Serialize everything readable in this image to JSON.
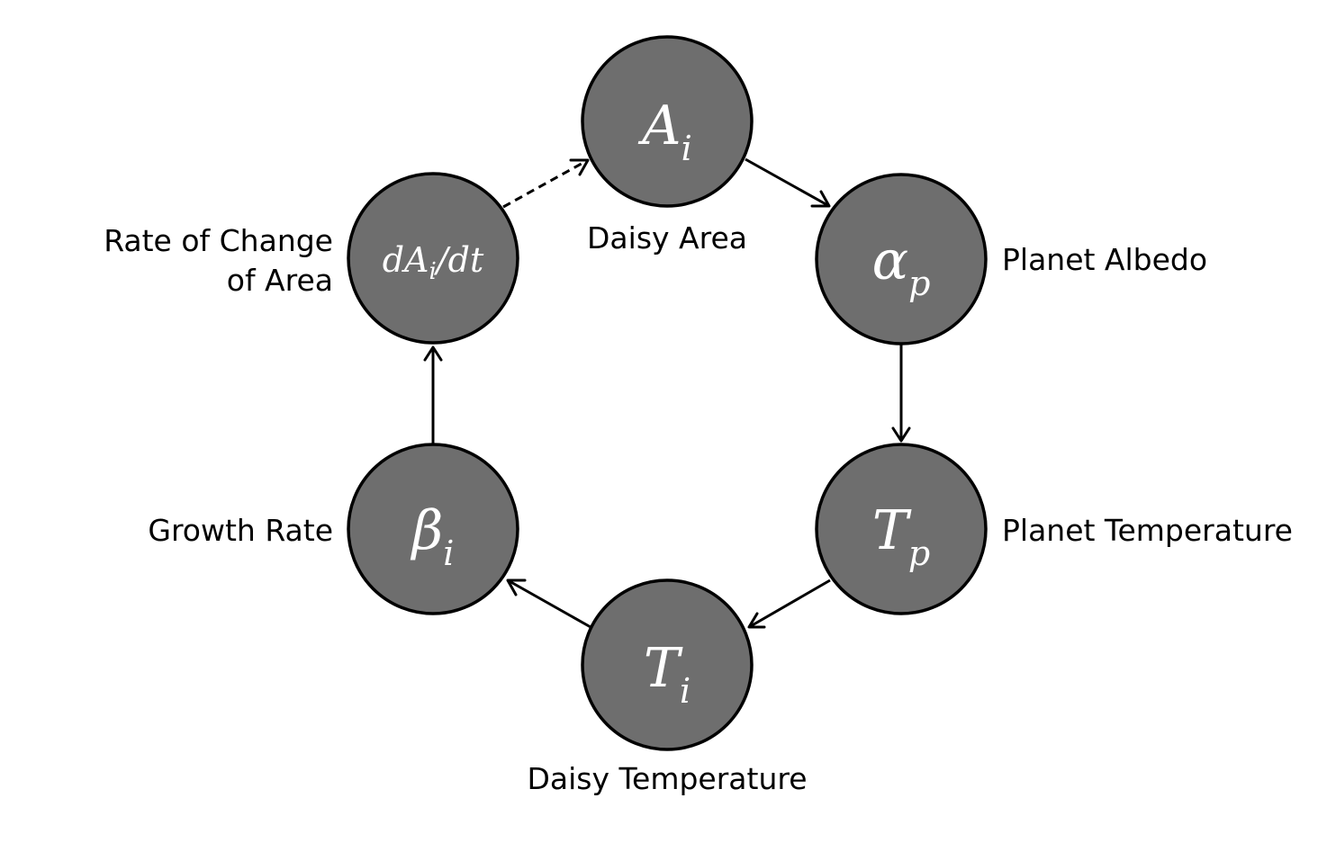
{
  "diagram": {
    "nodes": [
      {
        "id": "daisy-area",
        "symbol": "A",
        "subscript": "i",
        "label": "Daisy Area"
      },
      {
        "id": "planet-albedo",
        "symbol": "α",
        "subscript": "p",
        "label": "Planet Albedo"
      },
      {
        "id": "planet-temperature",
        "symbol": "T",
        "subscript": "p",
        "label": "Planet Temperature"
      },
      {
        "id": "daisy-temperature",
        "symbol": "T",
        "subscript": "i",
        "label": "Daisy Temperature"
      },
      {
        "id": "growth-rate",
        "symbol": "β",
        "subscript": "i",
        "label": "Growth Rate"
      },
      {
        "id": "rate-of-change",
        "symbol": "dA",
        "subscript": "i",
        "symbol_suffix": "/dt",
        "label_lines": [
          "Rate of Change",
          "of Area"
        ]
      }
    ],
    "edges": [
      {
        "from": "daisy-area",
        "to": "planet-albedo",
        "style": "solid"
      },
      {
        "from": "planet-albedo",
        "to": "planet-temperature",
        "style": "solid"
      },
      {
        "from": "planet-temperature",
        "to": "daisy-temperature",
        "style": "solid"
      },
      {
        "from": "daisy-temperature",
        "to": "growth-rate",
        "style": "solid"
      },
      {
        "from": "growth-rate",
        "to": "rate-of-change",
        "style": "solid"
      },
      {
        "from": "rate-of-change",
        "to": "daisy-area",
        "style": "dashed"
      }
    ]
  }
}
